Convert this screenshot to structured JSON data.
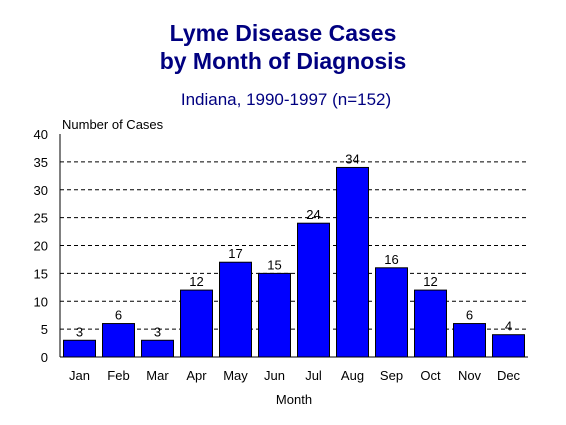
{
  "chart_data": {
    "type": "bar",
    "title_line1": "Lyme Disease Cases",
    "title_line2": "by Month of Diagnosis",
    "subtitle": "Indiana, 1990-1997 (n=152)",
    "ylabel": "Number of Cases",
    "xlabel": "Month",
    "ylim": [
      0,
      40
    ],
    "yticks": [
      0,
      5,
      10,
      15,
      20,
      25,
      30,
      35,
      40
    ],
    "grid": true,
    "categories": [
      "Jan",
      "Feb",
      "Mar",
      "Apr",
      "May",
      "Jun",
      "Jul",
      "Aug",
      "Sep",
      "Oct",
      "Nov",
      "Dec"
    ],
    "values": [
      3,
      6,
      3,
      12,
      17,
      15,
      24,
      34,
      16,
      12,
      6,
      4
    ],
    "bar_color": "#0000FF",
    "title_color": "#000080"
  }
}
